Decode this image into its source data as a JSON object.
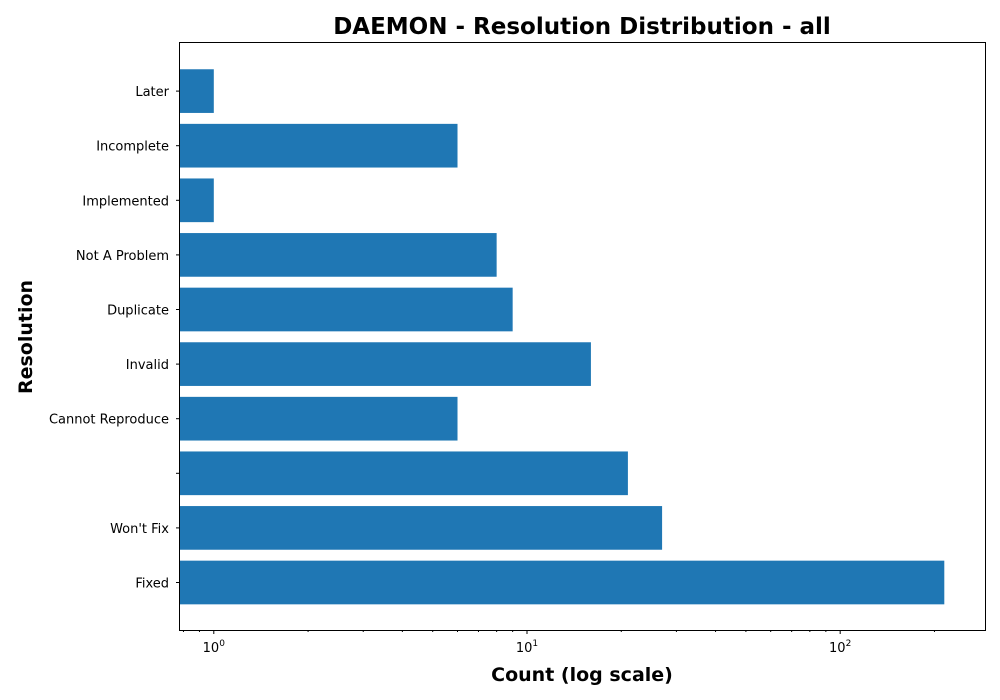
{
  "chart_data": {
    "type": "bar",
    "orientation": "horizontal",
    "title": "DAEMON - Resolution Distribution - all",
    "xlabel": "Count (log scale)",
    "ylabel": "Resolution",
    "x_scale": "log",
    "xlim": [
      0.78,
      290
    ],
    "x_ticks": [
      {
        "value": 1,
        "base": "10",
        "exp": "0"
      },
      {
        "value": 10,
        "base": "10",
        "exp": "1"
      },
      {
        "value": 100,
        "base": "10",
        "exp": "2"
      }
    ],
    "color": "#1f77b4",
    "grid": false,
    "categories": [
      "Fixed",
      "Won't Fix",
      "",
      "Cannot Reproduce",
      "Invalid",
      "Duplicate",
      "Not A Problem",
      "Implemented",
      "Incomplete",
      "Later"
    ],
    "values": [
      215,
      27,
      21,
      6,
      16,
      9,
      8,
      1,
      6,
      1
    ]
  }
}
